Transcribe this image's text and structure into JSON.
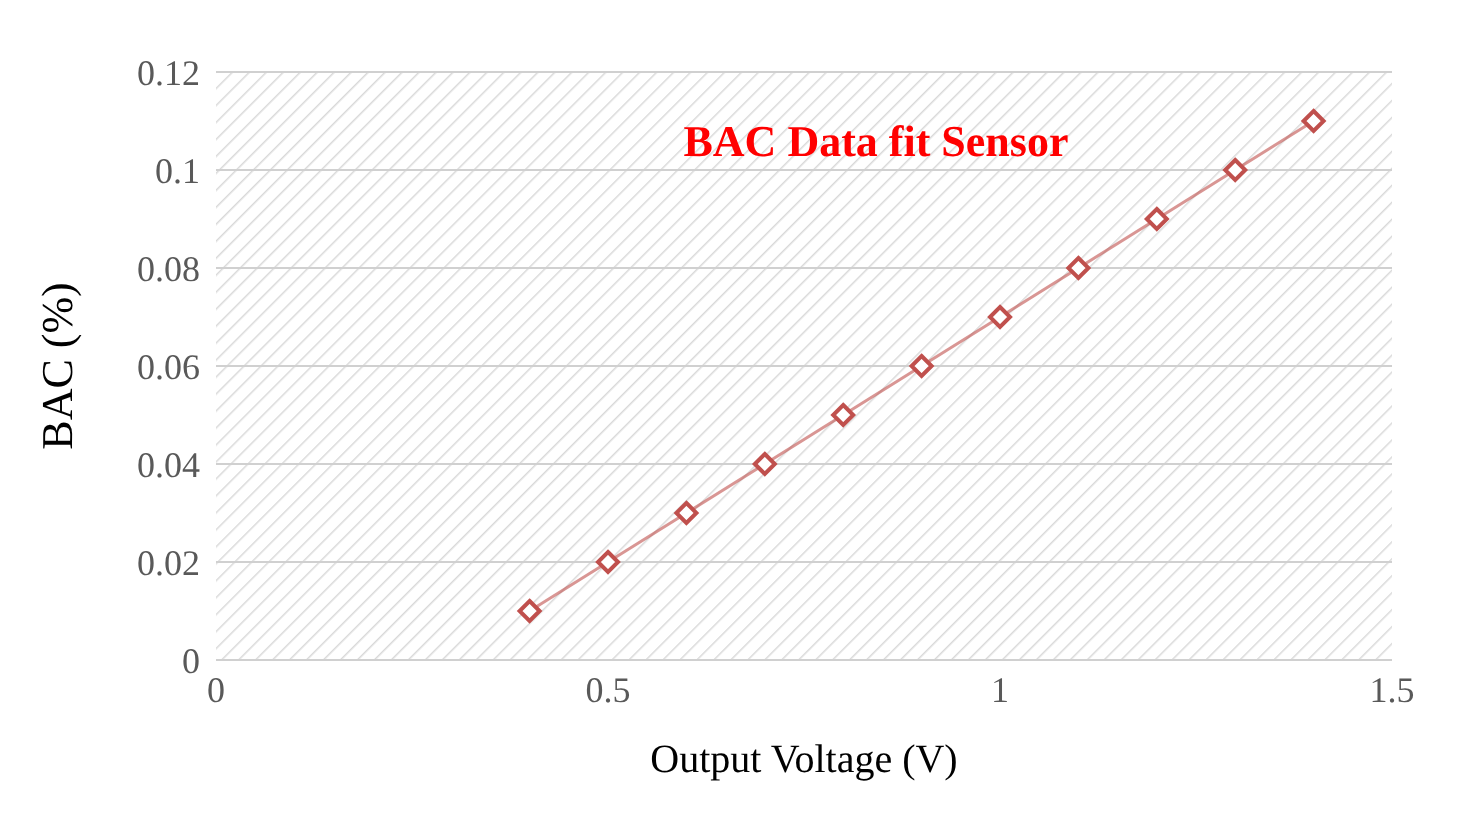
{
  "chart_data": {
    "type": "line",
    "title": "BAC Data fit Sensor",
    "xlabel": "Output Voltage (V)",
    "ylabel": "BAC (%)",
    "x": [
      0.4,
      0.5,
      0.6,
      0.7,
      0.8,
      0.9,
      1.0,
      1.1,
      1.2,
      1.3,
      1.4
    ],
    "series": [
      {
        "color": "#c0504d",
        "values": [
          0.01,
          0.02,
          0.03,
          0.04,
          0.05,
          0.06,
          0.07,
          0.08,
          0.09,
          0.1,
          0.11
        ]
      }
    ],
    "xlim": [
      0,
      1.5
    ],
    "xticks": [
      0,
      0.5,
      1,
      1.5
    ],
    "ylim": [
      0,
      0.12
    ],
    "yticks": [
      0,
      0.02,
      0.04,
      0.06,
      0.08,
      0.1,
      0.12
    ],
    "grid": "y",
    "marker": "diamond",
    "line_style": "solid"
  }
}
